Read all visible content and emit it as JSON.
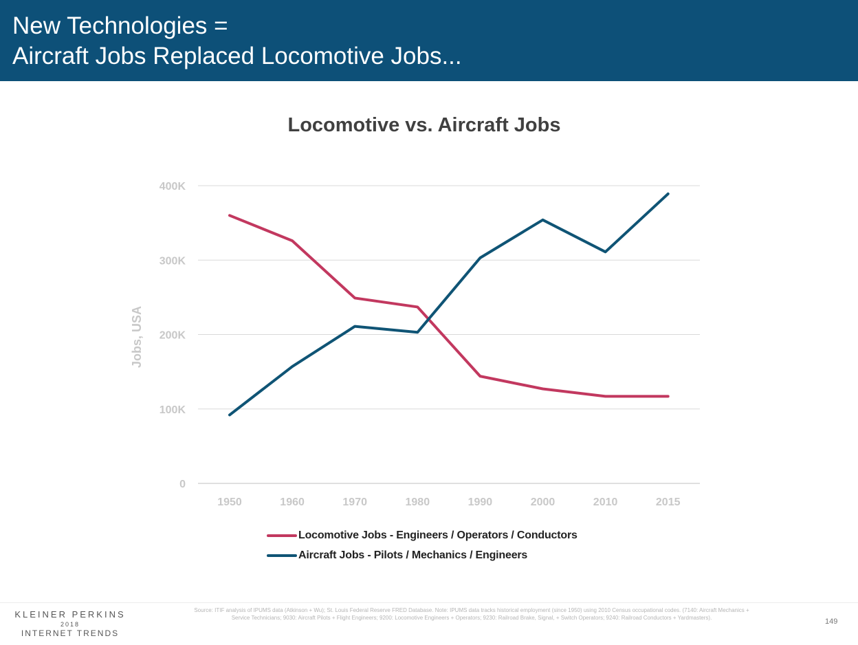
{
  "slide": {
    "title_line1": "New Technologies =",
    "title_line2": "Aircraft Jobs Replaced Locomotive Jobs...",
    "brand_line1": "KLEINER PERKINS",
    "brand_line2": "2018",
    "brand_line3": "INTERNET TRENDS",
    "source": "Source: ITIF analysis of IPUMS data (Atkinson + Wu); St. Louis Federal Reserve FRED Database. Note: IPUMS data tracks historical employment (since 1950) using 2010 Census occupational codes. (7140: Aircraft Mechanics + Service Technicians; 9030: Aircraft Pilots + Flight Engineers; 9200: Locomotive Engineers + Operators; 9230: Railroad Brake, Signal, + Switch Operators; 9240: Railroad Conductors + Yardmasters).",
    "page_number": "149",
    "colors": {
      "header_bg": "#0d5078",
      "locomotive": "#c2385f",
      "aircraft": "#0f5475",
      "grid": "#d9d9d9"
    }
  },
  "chart_data": {
    "type": "line",
    "title": "Locomotive vs. Aircraft Jobs",
    "ylabel": "Jobs, USA",
    "xlabel": "",
    "categories": [
      "1950",
      "1960",
      "1970",
      "1980",
      "1990",
      "2000",
      "2010",
      "2015"
    ],
    "ylim": [
      0,
      400000
    ],
    "yticks": [
      0,
      100000,
      200000,
      300000,
      400000
    ],
    "ytick_labels": [
      "0",
      "100K",
      "200K",
      "300K",
      "400K"
    ],
    "grid": true,
    "legend_position": "bottom",
    "series": [
      {
        "name": "Locomotive Jobs - Engineers / Operators / Conductors",
        "color": "#c2385f",
        "values": [
          360000,
          326000,
          249000,
          237000,
          144000,
          127000,
          117000,
          117000
        ]
      },
      {
        "name": "Aircraft Jobs - Pilots / Mechanics / Engineers",
        "color": "#0f5475",
        "values": [
          92000,
          157000,
          211000,
          203000,
          303000,
          354000,
          311000,
          389000
        ]
      }
    ]
  }
}
